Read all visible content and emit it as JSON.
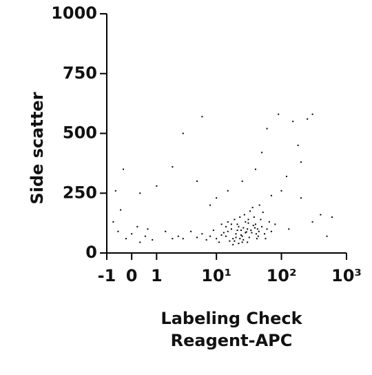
{
  "chart_data": {
    "type": "scatter",
    "ylabel": "Side scatter",
    "xlabel": [
      "Labeling Check",
      "Reagent-APC"
    ],
    "xscale": "asinh",
    "xlim": [
      -1,
      1000
    ],
    "xticks": [
      -1,
      0,
      1,
      {
        "value": 10,
        "label": "10¹"
      },
      {
        "value": 100,
        "label": "10²"
      },
      {
        "value": 1000,
        "label": "10³"
      }
    ],
    "ylim": [
      0,
      1000
    ],
    "yticks": [
      0,
      250,
      500,
      750,
      1000
    ],
    "color": "#000000",
    "x": [
      20,
      25,
      15,
      30,
      18,
      22,
      35,
      12,
      40,
      28,
      16,
      24,
      32,
      45,
      10,
      8,
      14,
      38,
      26,
      19,
      50,
      55,
      42,
      30,
      22,
      17,
      13,
      9,
      11,
      27,
      33,
      48,
      36,
      60,
      65,
      7,
      6,
      5,
      21,
      29,
      44,
      39,
      23,
      31,
      18,
      15,
      12,
      52,
      46,
      57,
      70,
      80,
      4,
      3,
      2.5,
      20,
      24,
      34,
      26,
      14,
      37,
      43,
      19,
      28,
      17,
      23,
      31,
      41,
      25,
      21,
      -0.5,
      -0.2,
      0.2,
      0.5,
      0.8,
      -0.7,
      0,
      0.3,
      1.5,
      2,
      -0.4,
      0.6,
      3,
      6,
      25,
      50,
      100,
      200,
      300,
      150,
      250,
      400,
      600,
      2,
      0.3,
      -0.6,
      10,
      70,
      120,
      180,
      40,
      15,
      500,
      300,
      130,
      5,
      -0.3,
      1,
      8,
      90,
      200,
      60
    ],
    "y": [
      80,
      70,
      90,
      100,
      60,
      110,
      85,
      75,
      120,
      130,
      50,
      95,
      65,
      90,
      60,
      70,
      110,
      150,
      55,
      140,
      110,
      80,
      60,
      45,
      40,
      100,
      85,
      95,
      45,
      160,
      175,
      140,
      190,
      100,
      130,
      55,
      80,
      65,
      120,
      88,
      70,
      105,
      150,
      125,
      35,
      130,
      120,
      170,
      200,
      60,
      90,
      120,
      90,
      60,
      70,
      65,
      75,
      95,
      105,
      70,
      115,
      100,
      50,
      85,
      120,
      60,
      140,
      80,
      45,
      95,
      90,
      60,
      110,
      70,
      55,
      130,
      80,
      45,
      90,
      60,
      180,
      100,
      500,
      570,
      300,
      420,
      260,
      380,
      580,
      550,
      560,
      160,
      150,
      360,
      250,
      260,
      230,
      240,
      320,
      450,
      350,
      260,
      70,
      130,
      100,
      300,
      350,
      280,
      200,
      580,
      230,
      520
    ]
  }
}
